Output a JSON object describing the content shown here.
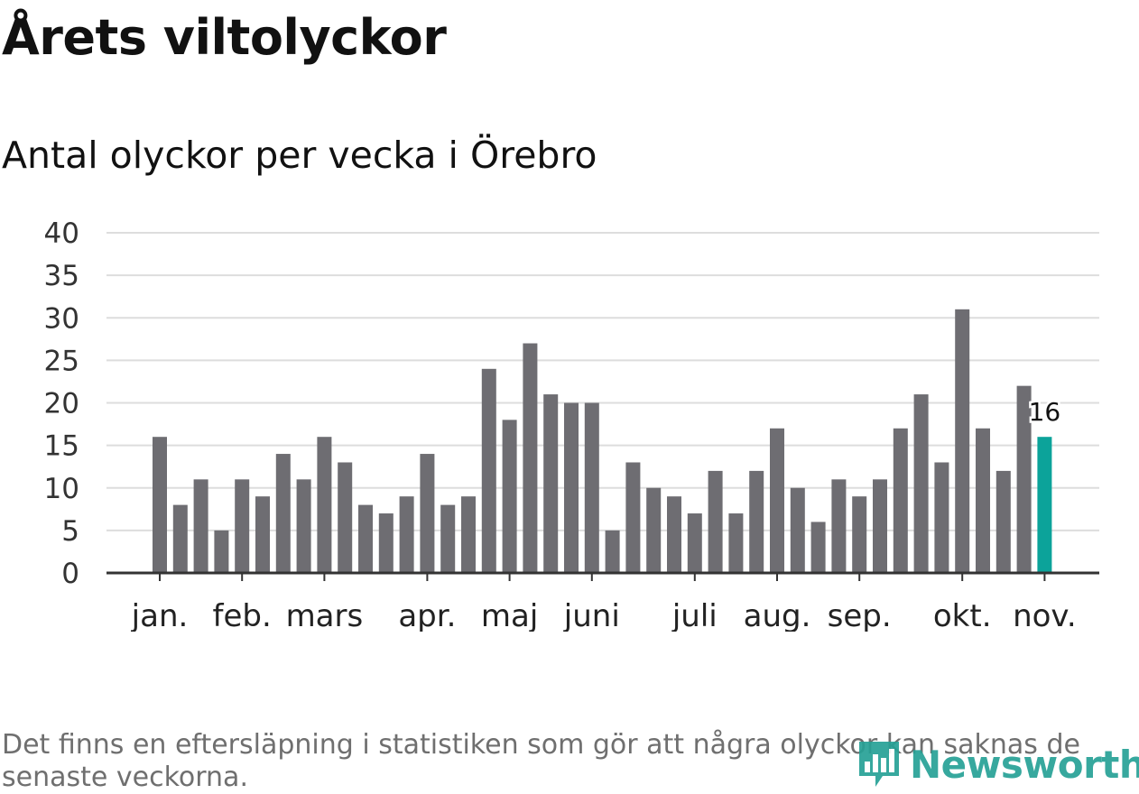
{
  "title": "Årets viltolyckor",
  "subtitle": "Antal olyckor per vecka i Örebro",
  "footnote": "Det finns en eftersläpning i statistiken som gör att några olyckor kan saknas de senaste veckorna.",
  "logo": {
    "text": "Newsworthy",
    "icon": "newsworthy-bar-chart-icon",
    "color": "#27a196"
  },
  "colors": {
    "bar": "#6e6d72",
    "highlight": "#0ca39a",
    "grid": "#dddddd",
    "axis": "#333333"
  },
  "chart_data": {
    "type": "bar",
    "title": "Antal olyckor per vecka i Örebro",
    "xlabel": "",
    "ylabel": "",
    "ylim": [
      0,
      40
    ],
    "yticks": [
      0,
      5,
      10,
      15,
      20,
      25,
      30,
      35,
      40
    ],
    "grid": true,
    "values": [
      16,
      8,
      11,
      5,
      11,
      9,
      14,
      11,
      16,
      13,
      8,
      7,
      9,
      14,
      8,
      9,
      24,
      18,
      27,
      21,
      20,
      20,
      5,
      13,
      10,
      9,
      7,
      12,
      7,
      12,
      17,
      10,
      6,
      11,
      9,
      11,
      17,
      21,
      13,
      31,
      17,
      12,
      22,
      16
    ],
    "highlight_index": 43,
    "highlight_label": "16",
    "month_ticks": [
      {
        "label": "jan.",
        "week": 0
      },
      {
        "label": "feb.",
        "week": 4
      },
      {
        "label": "mars",
        "week": 8
      },
      {
        "label": "apr.",
        "week": 13
      },
      {
        "label": "maj",
        "week": 17
      },
      {
        "label": "juni",
        "week": 21
      },
      {
        "label": "juli",
        "week": 26
      },
      {
        "label": "aug.",
        "week": 30
      },
      {
        "label": "sep.",
        "week": 34
      },
      {
        "label": "okt.",
        "week": 39
      },
      {
        "label": "nov.",
        "week": 43
      }
    ]
  }
}
